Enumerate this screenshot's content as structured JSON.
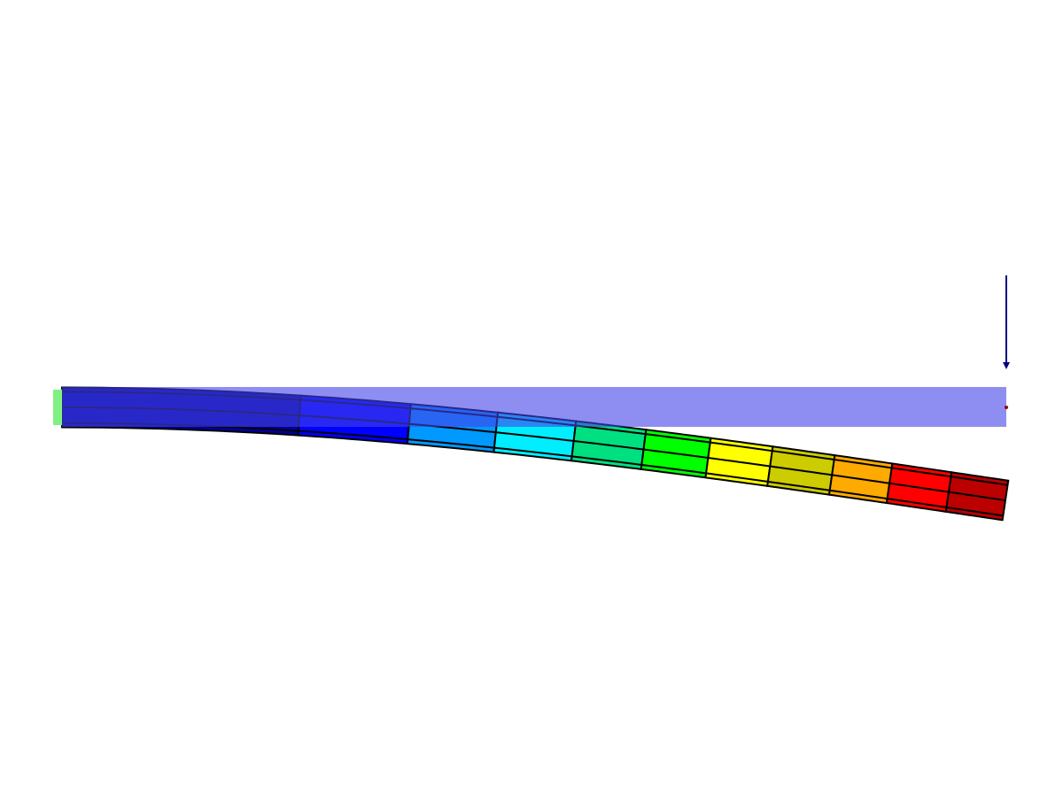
{
  "view": {
    "background": "#ffffff",
    "mesh_line_color": "#000000"
  },
  "undeformed_beam": {
    "fill": "#4343e9",
    "opacity": 0.6
  },
  "support": {
    "type": "fixed",
    "color": "#80f080"
  },
  "load": {
    "direction": "down",
    "color": "#000080"
  },
  "load_point": {
    "color": "#990000"
  },
  "elements": [
    {
      "color": "#000099"
    },
    {
      "color": "#0000ff"
    },
    {
      "color": "#0099ff"
    },
    {
      "color": "#00eeff"
    },
    {
      "color": "#00e080"
    },
    {
      "color": "#00ff00"
    },
    {
      "color": "#ffff00"
    },
    {
      "color": "#cccc00"
    },
    {
      "color": "#ffaa00"
    },
    {
      "color": "#ff0000"
    },
    {
      "color": "#bb0000"
    }
  ]
}
